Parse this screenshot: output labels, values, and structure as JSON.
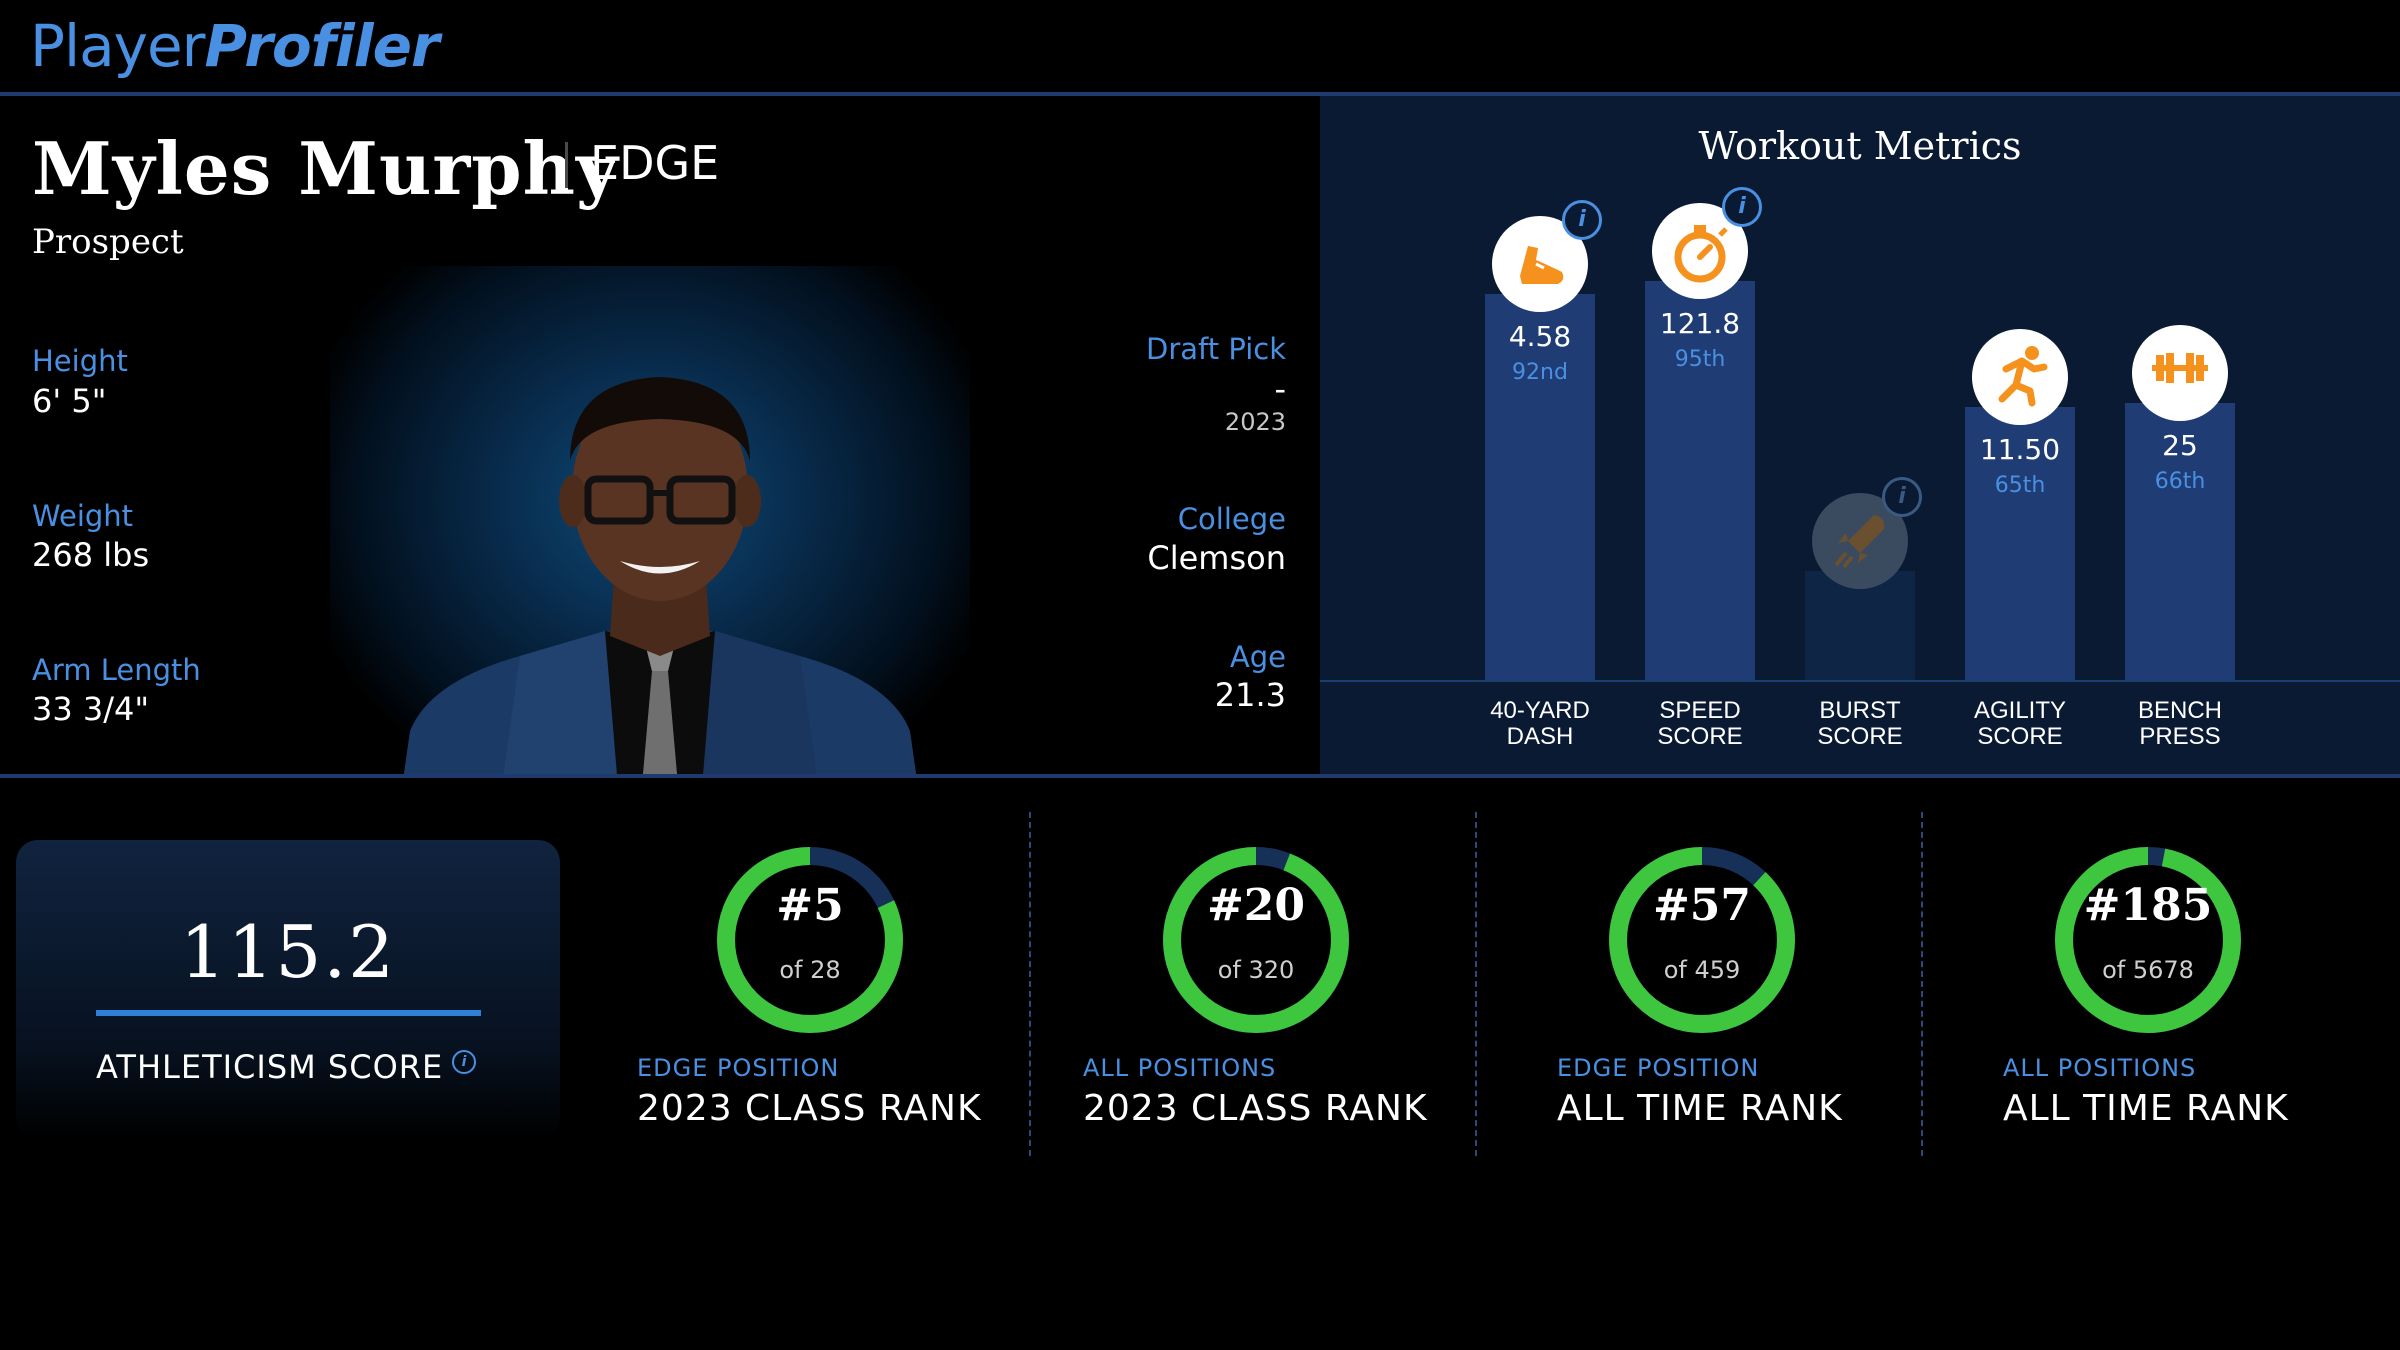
{
  "brand": {
    "logo_part1": "Player",
    "logo_part2": "Profiler"
  },
  "player": {
    "name": "Myles Murphy",
    "position": "EDGE",
    "status": "Prospect",
    "height_label": "Height",
    "height": "6' 5\"",
    "weight_label": "Weight",
    "weight": "268 lbs",
    "arm_label": "Arm Length",
    "arm": "33 3/4\"",
    "draft_label": "Draft Pick",
    "draft_pick": "-",
    "draft_year": "2023",
    "college_label": "College",
    "college": "Clemson",
    "age_label": "Age",
    "age": "21.3"
  },
  "workout": {
    "title": "Workout Metrics",
    "metrics": [
      {
        "label": "40-YARD\nDASH",
        "value": "4.58",
        "percentile": "92nd",
        "pct_level": 92,
        "icon": "shoe-icon",
        "has_info": true,
        "dim": false
      },
      {
        "label": "SPEED\nSCORE",
        "value": "121.8",
        "percentile": "95th",
        "pct_level": 95,
        "icon": "stopwatch-icon",
        "has_info": true,
        "dim": false
      },
      {
        "label": "BURST\nSCORE",
        "value": "",
        "percentile": "",
        "pct_level": 26,
        "icon": "rocket-icon",
        "has_info": true,
        "dim": true
      },
      {
        "label": "AGILITY\nSCORE",
        "value": "11.50",
        "percentile": "65th",
        "pct_level": 65,
        "icon": "runner-icon",
        "has_info": false,
        "dim": false
      },
      {
        "label": "BENCH\nPRESS",
        "value": "25",
        "percentile": "66th",
        "pct_level": 66,
        "icon": "barbell-icon",
        "has_info": false,
        "dim": false
      }
    ]
  },
  "athleticism": {
    "score": "115.2",
    "label": "ATHLETICISM SCORE",
    "info": "i"
  },
  "ranks": [
    {
      "rank": "#5",
      "of": "of 28",
      "category": "EDGE POSITION",
      "title": "2023 CLASS RANK",
      "fraction": 0.82
    },
    {
      "rank": "#20",
      "of": "of 320",
      "category": "ALL POSITIONS",
      "title": "2023 CLASS RANK",
      "fraction": 0.94
    },
    {
      "rank": "#57",
      "of": "of 459",
      "category": "EDGE POSITION",
      "title": "ALL TIME RANK",
      "fraction": 0.88
    },
    {
      "rank": "#185",
      "of": "of 5678",
      "category": "ALL POSITIONS",
      "title": "ALL TIME RANK",
      "fraction": 0.97
    }
  ],
  "colors": {
    "accent": "#4a90e2",
    "ring_fill": "#3fc63f",
    "ring_track": "#173058",
    "icon_orange": "#f5921e"
  }
}
